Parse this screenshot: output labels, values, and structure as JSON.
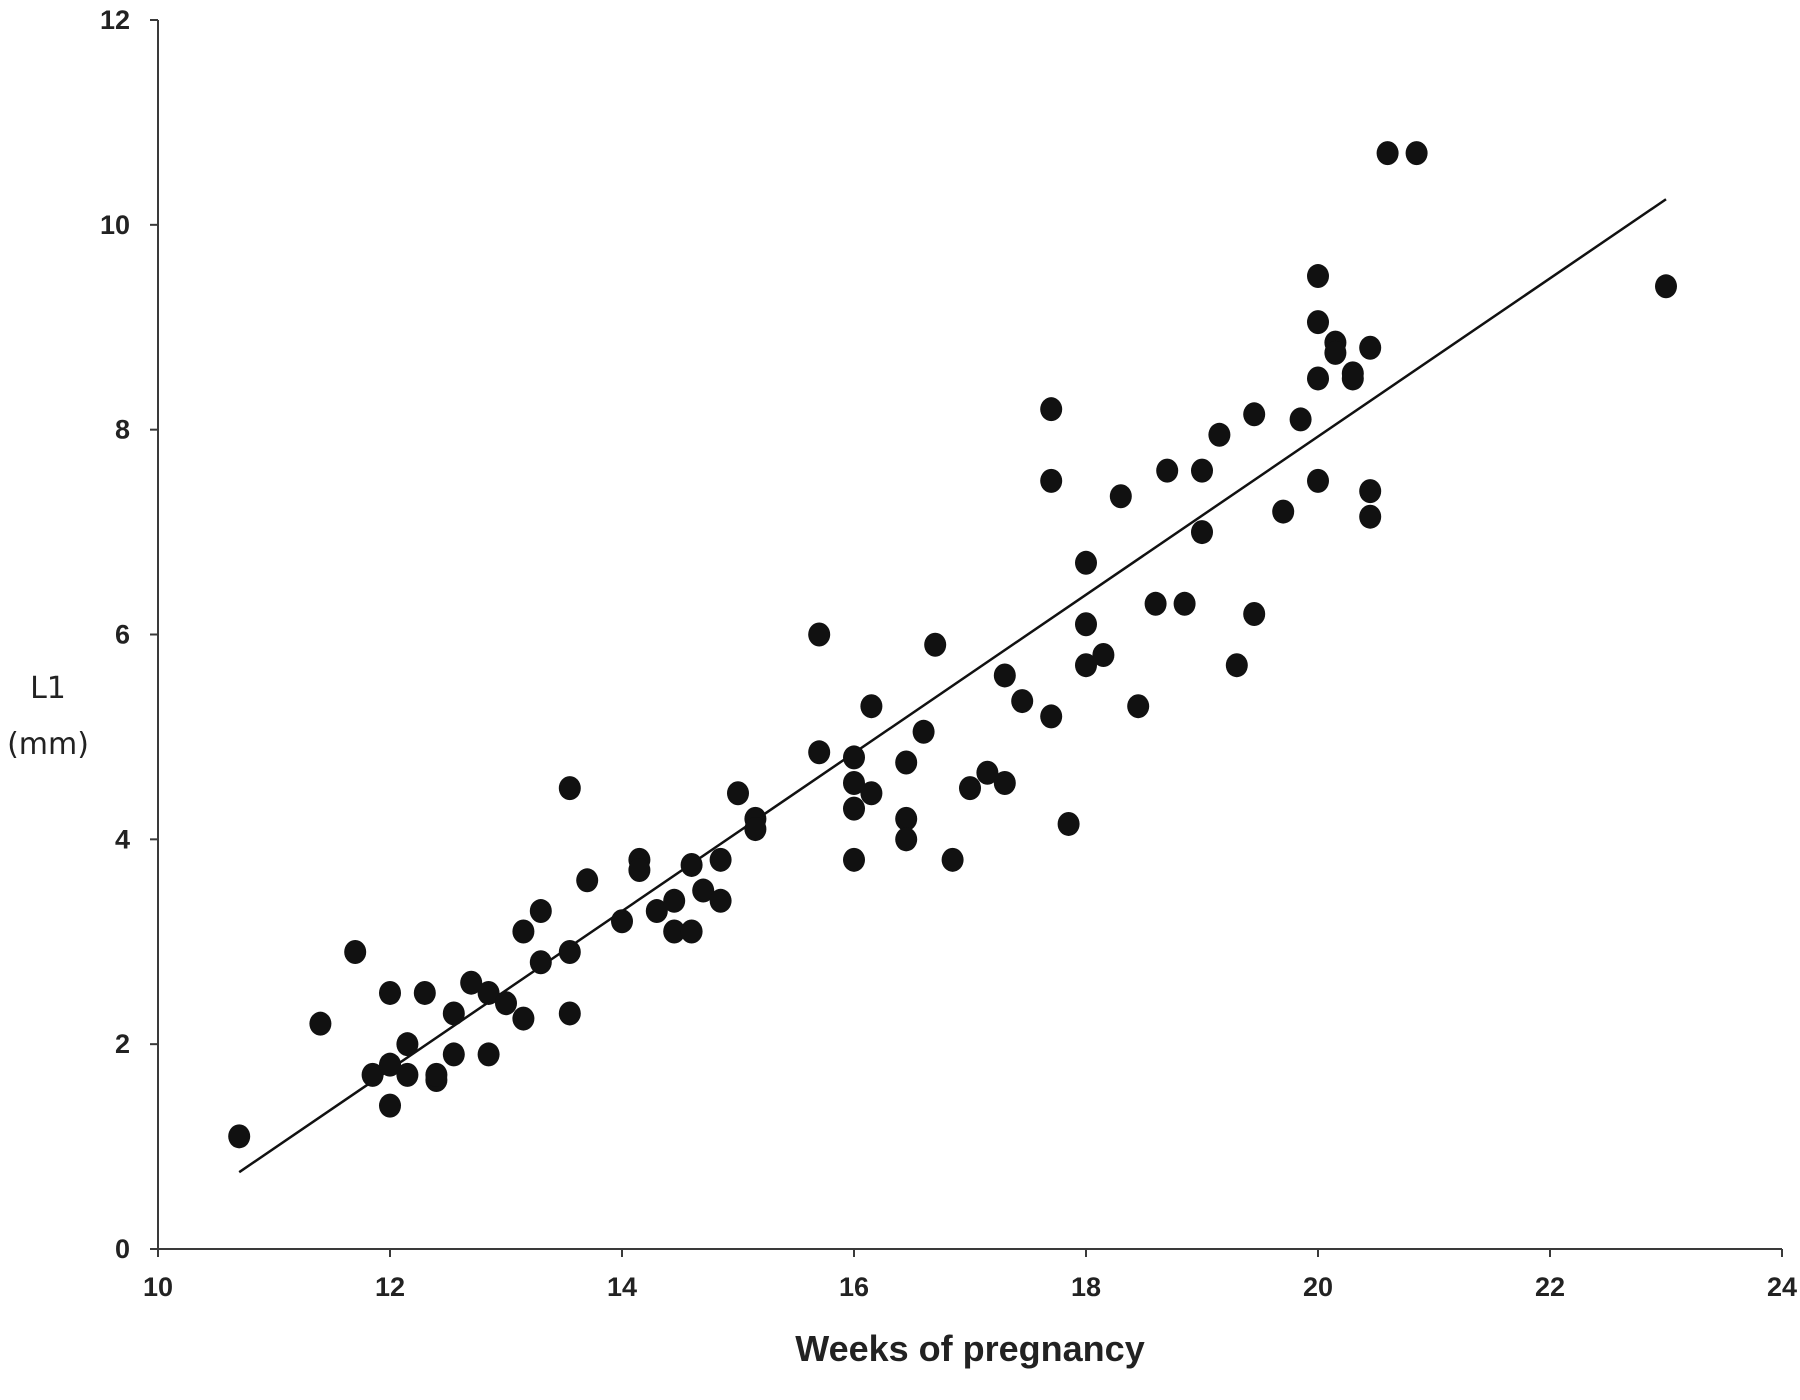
{
  "chart_data": {
    "type": "scatter",
    "title": "",
    "xlabel": "Weeks of pregnancy",
    "ylabel_lines": [
      "L1",
      "(mm)"
    ],
    "xlim": [
      10,
      24
    ],
    "ylim": [
      0,
      12
    ],
    "x_ticks": [
      10,
      12,
      14,
      16,
      18,
      20,
      22,
      24
    ],
    "y_ticks": [
      0,
      2,
      4,
      6,
      8,
      10,
      12
    ],
    "grid": false,
    "trendline": {
      "x": [
        10.7,
        23.0
      ],
      "y": [
        0.75,
        10.25
      ]
    },
    "points": [
      [
        10.7,
        1.1
      ],
      [
        11.4,
        2.2
      ],
      [
        11.7,
        2.9
      ],
      [
        11.85,
        1.7
      ],
      [
        12.0,
        2.5
      ],
      [
        12.0,
        1.8
      ],
      [
        12.0,
        1.4
      ],
      [
        12.15,
        2.0
      ],
      [
        12.15,
        1.7
      ],
      [
        12.3,
        2.5
      ],
      [
        12.4,
        1.65
      ],
      [
        12.4,
        1.7
      ],
      [
        12.55,
        2.3
      ],
      [
        12.55,
        1.9
      ],
      [
        12.7,
        2.6
      ],
      [
        12.85,
        2.5
      ],
      [
        12.85,
        1.9
      ],
      [
        13.0,
        2.4
      ],
      [
        13.15,
        3.1
      ],
      [
        13.15,
        2.25
      ],
      [
        13.3,
        3.3
      ],
      [
        13.3,
        2.8
      ],
      [
        13.55,
        4.5
      ],
      [
        13.55,
        2.9
      ],
      [
        13.55,
        2.3
      ],
      [
        13.7,
        3.6
      ],
      [
        14.0,
        3.2
      ],
      [
        14.15,
        3.8
      ],
      [
        14.15,
        3.7
      ],
      [
        14.3,
        3.3
      ],
      [
        14.45,
        3.4
      ],
      [
        14.45,
        3.1
      ],
      [
        14.6,
        3.75
      ],
      [
        14.6,
        3.1
      ],
      [
        14.7,
        3.5
      ],
      [
        14.85,
        3.8
      ],
      [
        14.85,
        3.4
      ],
      [
        15.0,
        4.45
      ],
      [
        15.15,
        4.2
      ],
      [
        15.15,
        4.1
      ],
      [
        15.7,
        6.0
      ],
      [
        15.7,
        4.85
      ],
      [
        16.0,
        4.8
      ],
      [
        16.0,
        4.55
      ],
      [
        16.0,
        4.3
      ],
      [
        16.0,
        3.8
      ],
      [
        16.15,
        5.3
      ],
      [
        16.15,
        4.45
      ],
      [
        16.45,
        4.75
      ],
      [
        16.45,
        4.2
      ],
      [
        16.45,
        4.0
      ],
      [
        16.6,
        5.05
      ],
      [
        16.7,
        5.9
      ],
      [
        16.85,
        3.8
      ],
      [
        17.0,
        4.5
      ],
      [
        17.15,
        4.65
      ],
      [
        17.3,
        5.6
      ],
      [
        17.3,
        4.55
      ],
      [
        17.45,
        5.35
      ],
      [
        17.7,
        8.2
      ],
      [
        17.7,
        7.5
      ],
      [
        17.7,
        5.2
      ],
      [
        17.85,
        4.15
      ],
      [
        18.0,
        6.7
      ],
      [
        18.0,
        6.1
      ],
      [
        18.0,
        5.7
      ],
      [
        18.15,
        5.8
      ],
      [
        18.3,
        7.35
      ],
      [
        18.45,
        5.3
      ],
      [
        18.6,
        6.3
      ],
      [
        18.7,
        7.6
      ],
      [
        18.85,
        6.3
      ],
      [
        19.0,
        7.6
      ],
      [
        19.0,
        7.0
      ],
      [
        19.15,
        7.95
      ],
      [
        19.3,
        5.7
      ],
      [
        19.45,
        8.15
      ],
      [
        19.45,
        6.2
      ],
      [
        19.7,
        7.2
      ],
      [
        19.85,
        8.1
      ],
      [
        20.0,
        9.5
      ],
      [
        20.0,
        9.05
      ],
      [
        20.0,
        8.5
      ],
      [
        20.0,
        7.5
      ],
      [
        20.15,
        8.85
      ],
      [
        20.15,
        8.75
      ],
      [
        20.3,
        8.55
      ],
      [
        20.3,
        8.5
      ],
      [
        20.45,
        8.8
      ],
      [
        20.45,
        7.4
      ],
      [
        20.45,
        7.15
      ],
      [
        20.6,
        10.7
      ],
      [
        20.85,
        10.7
      ],
      [
        23.0,
        9.4
      ]
    ]
  }
}
